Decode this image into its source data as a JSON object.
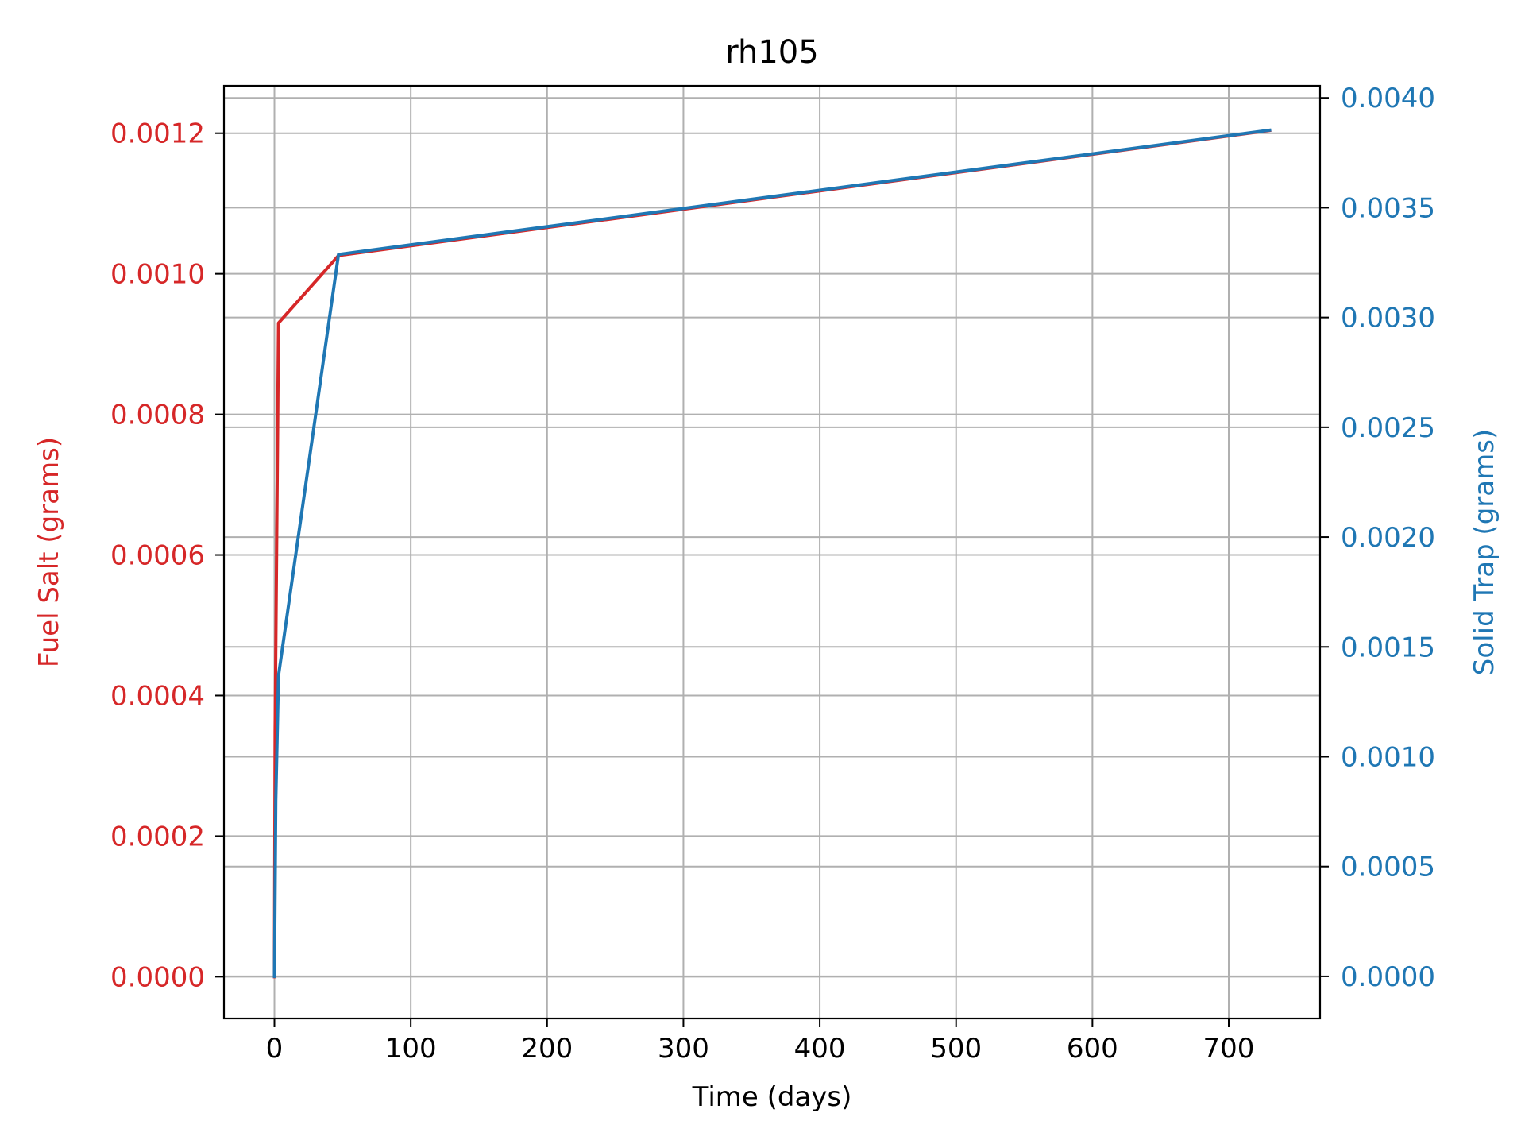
{
  "chart_data": {
    "type": "line",
    "title": "rh105",
    "xlabel": "Time (days)",
    "ylabel_left": "Fuel Salt (grams)",
    "ylabel_right": "Solid Trap (grams)",
    "xlim": [
      -37,
      767
    ],
    "xticks": [
      0,
      100,
      200,
      300,
      400,
      500,
      600,
      700
    ],
    "xtick_labels": [
      "0",
      "100",
      "200",
      "300",
      "400",
      "500",
      "600",
      "700"
    ],
    "ylim_left": [
      -5.95e-05,
      0.0012675
    ],
    "yticks_left": [
      0.0,
      0.0002,
      0.0004,
      0.0006,
      0.0008,
      0.001,
      0.0012
    ],
    "ytick_labels_left": [
      "0.0000",
      "0.0002",
      "0.0004",
      "0.0006",
      "0.0008",
      "0.0010",
      "0.0012"
    ],
    "ylim_right": [
      -0.000192,
      0.004055
    ],
    "yticks_right": [
      0.0,
      0.0005,
      0.001,
      0.0015,
      0.002,
      0.0025,
      0.003,
      0.0035,
      0.004
    ],
    "ytick_labels_right": [
      "0.0000",
      "0.0005",
      "0.0010",
      "0.0015",
      "0.0020",
      "0.0025",
      "0.0030",
      "0.0035",
      "0.0040"
    ],
    "grid": true,
    "left_color": "#d62728",
    "right_color": "#1f77b4",
    "series": [
      {
        "axis": "left",
        "color": "#d62728",
        "x": [
          0,
          0.5,
          3,
          47,
          730
        ],
        "y": [
          0.0,
          0.00035,
          0.00093,
          0.001026,
          0.001204
        ]
      },
      {
        "axis": "right",
        "color": "#1f77b4",
        "x": [
          0,
          1,
          3,
          47,
          730
        ],
        "y": [
          0.0,
          0.0008,
          0.00137,
          0.003287,
          0.003853
        ]
      }
    ]
  }
}
